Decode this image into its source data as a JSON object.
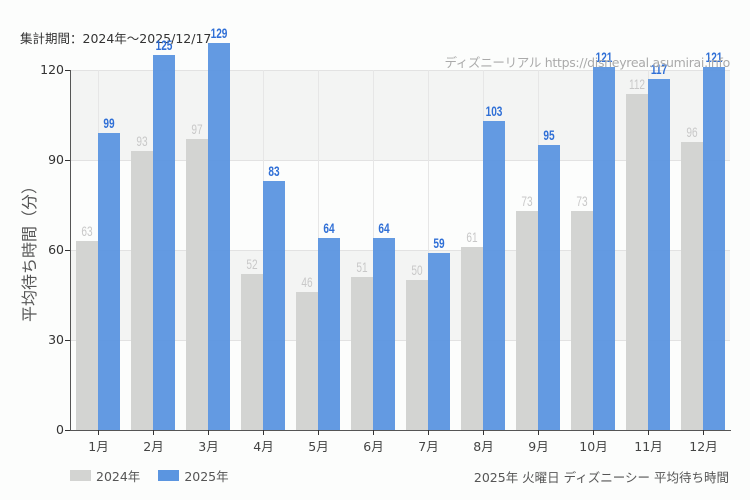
{
  "header": {
    "period": "集計期間：2024年～2025/12/17",
    "watermark": "ディズニーリアル https://disneyreal.asumirai.info"
  },
  "footer": {
    "caption": "2025年 火曜日 ディズニーシー 平均待ち時間"
  },
  "colors": {
    "series_2024": "#d3d4d2",
    "series_2025": "#5b95e0",
    "label_2025": "#2f6fd6",
    "label_2024": "#c8c8c8"
  },
  "chart_data": {
    "type": "bar",
    "title": "2025年 火曜日 ディズニーシー 平均待ち時間",
    "subtitle": "集計期間：2024年～2025/12/17",
    "xlabel": "",
    "ylabel": "平均待ち時間（分）",
    "ylim": [
      0,
      120
    ],
    "yticks": [
      0,
      30,
      60,
      90,
      120
    ],
    "grid": true,
    "legend_position": "bottom-left",
    "categories": [
      "1月",
      "2月",
      "3月",
      "4月",
      "5月",
      "6月",
      "7月",
      "8月",
      "9月",
      "10月",
      "11月",
      "12月"
    ],
    "series": [
      {
        "name": "2024年",
        "values": [
          63,
          93,
          97,
          52,
          46,
          51,
          50,
          61,
          73,
          73,
          112,
          96
        ]
      },
      {
        "name": "2025年",
        "values": [
          99,
          125,
          129,
          83,
          64,
          64,
          59,
          103,
          95,
          121,
          117,
          121
        ]
      }
    ]
  }
}
